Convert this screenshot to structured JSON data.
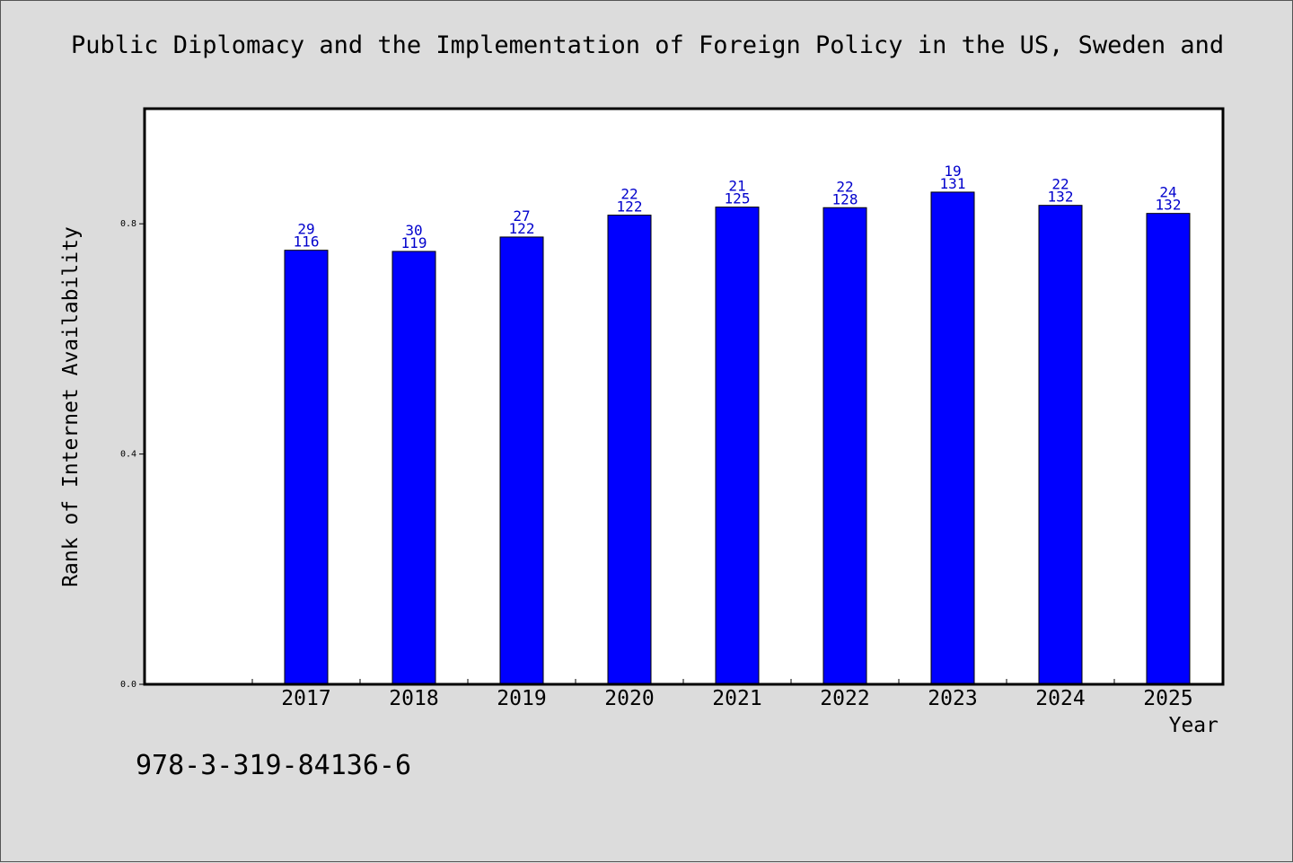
{
  "title": "Public Diplomacy and the Implementation of Foreign Policy in the US, Sweden and",
  "footer_code": "978-3-319-84136-6",
  "colors": {
    "bar": "#0000ff",
    "label": "#0000cc",
    "background": "#dcdcdc",
    "plot": "#ffffff"
  },
  "chart_data": {
    "type": "bar",
    "title": "Public Diplomacy and the Implementation of Foreign Policy in the US, Sweden and",
    "xlabel": "Year",
    "ylabel": "Rank of Internet Availability",
    "ylim": [
      0,
      1.0
    ],
    "yticks": [
      0.0,
      0.4,
      0.8
    ],
    "ytick_labels": [
      "0.0",
      "0.4",
      "0.8"
    ],
    "grid": false,
    "categories": [
      "2017",
      "2018",
      "2019",
      "2020",
      "2021",
      "2022",
      "2023",
      "2024",
      "2025"
    ],
    "values": [
      0.754,
      0.752,
      0.777,
      0.815,
      0.829,
      0.828,
      0.855,
      0.832,
      0.818
    ],
    "label_top": [
      "29",
      "30",
      "27",
      "22",
      "21",
      "22",
      "19",
      "22",
      "24"
    ],
    "label_bottom": [
      "116",
      "119",
      "122",
      "122",
      "125",
      "128",
      "131",
      "132",
      "132"
    ]
  }
}
